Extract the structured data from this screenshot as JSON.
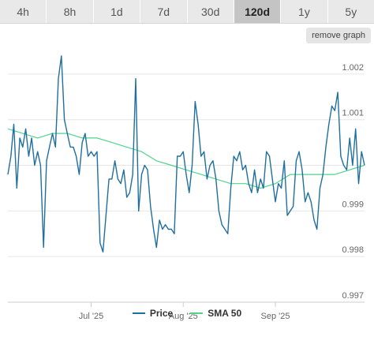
{
  "ranges": [
    {
      "label": "4h",
      "active": false
    },
    {
      "label": "8h",
      "active": false
    },
    {
      "label": "1d",
      "active": false
    },
    {
      "label": "7d",
      "active": false
    },
    {
      "label": "30d",
      "active": false
    },
    {
      "label": "120d",
      "active": true
    },
    {
      "label": "1y",
      "active": false
    },
    {
      "label": "5y",
      "active": false
    }
  ],
  "remove_graph_label": "remove graph",
  "legend": [
    {
      "label": "Price",
      "color": "#1f6f9f"
    },
    {
      "label": "SMA 50",
      "color": "#4fd48a"
    }
  ],
  "chart_data": {
    "type": "line",
    "x_tick_labels": [
      "Jul '25",
      "Aug '25",
      "Sep '25"
    ],
    "x_tick_dates": [
      "2025-07-01",
      "2025-08-01",
      "2025-09-01"
    ],
    "x_range": [
      "2025-06-03",
      "2025-10-01"
    ],
    "ylim": [
      0.997,
      1.0025
    ],
    "y_ticks": [
      0.997,
      0.998,
      0.999,
      1.001,
      1.002
    ],
    "y_tick_labels": [
      "0.997",
      "0.998",
      "0.999",
      "1.001",
      "1.002"
    ],
    "grid": "horizontal",
    "legend_position": "bottom-center",
    "series": [
      {
        "name": "Price",
        "color": "#1f6f9f",
        "x": [
          "2025-06-03",
          "2025-06-04",
          "2025-06-05",
          "2025-06-06",
          "2025-06-07",
          "2025-06-08",
          "2025-06-09",
          "2025-06-10",
          "2025-06-11",
          "2025-06-12",
          "2025-06-13",
          "2025-06-14",
          "2025-06-15",
          "2025-06-16",
          "2025-06-17",
          "2025-06-18",
          "2025-06-19",
          "2025-06-20",
          "2025-06-21",
          "2025-06-22",
          "2025-06-23",
          "2025-06-24",
          "2025-06-25",
          "2025-06-26",
          "2025-06-27",
          "2025-06-28",
          "2025-06-29",
          "2025-06-30",
          "2025-07-01",
          "2025-07-02",
          "2025-07-03",
          "2025-07-04",
          "2025-07-05",
          "2025-07-06",
          "2025-07-07",
          "2025-07-08",
          "2025-07-09",
          "2025-07-10",
          "2025-07-11",
          "2025-07-12",
          "2025-07-13",
          "2025-07-14",
          "2025-07-15",
          "2025-07-16",
          "2025-07-17",
          "2025-07-18",
          "2025-07-19",
          "2025-07-20",
          "2025-07-21",
          "2025-07-22",
          "2025-07-23",
          "2025-07-24",
          "2025-07-25",
          "2025-07-26",
          "2025-07-27",
          "2025-07-28",
          "2025-07-29",
          "2025-07-30",
          "2025-07-31",
          "2025-08-01",
          "2025-08-02",
          "2025-08-03",
          "2025-08-04",
          "2025-08-05",
          "2025-08-06",
          "2025-08-07",
          "2025-08-08",
          "2025-08-09",
          "2025-08-10",
          "2025-08-11",
          "2025-08-12",
          "2025-08-13",
          "2025-08-14",
          "2025-08-15",
          "2025-08-16",
          "2025-08-17",
          "2025-08-18",
          "2025-08-19",
          "2025-08-20",
          "2025-08-21",
          "2025-08-22",
          "2025-08-23",
          "2025-08-24",
          "2025-08-25",
          "2025-08-26",
          "2025-08-27",
          "2025-08-28",
          "2025-08-29",
          "2025-08-30",
          "2025-08-31",
          "2025-09-01",
          "2025-09-02",
          "2025-09-03",
          "2025-09-04",
          "2025-09-05",
          "2025-09-06",
          "2025-09-07",
          "2025-09-08",
          "2025-09-09",
          "2025-09-10",
          "2025-09-11",
          "2025-09-12",
          "2025-09-13",
          "2025-09-14",
          "2025-09-15",
          "2025-09-16",
          "2025-09-17",
          "2025-09-18",
          "2025-09-19",
          "2025-09-20",
          "2025-09-21",
          "2025-09-22",
          "2025-09-23",
          "2025-09-24",
          "2025-09-25",
          "2025-09-26",
          "2025-09-27",
          "2025-09-28",
          "2025-09-29",
          "2025-09-30",
          "2025-10-01"
        ],
        "values": [
          0.9998,
          1.0002,
          1.0009,
          0.9995,
          1.0006,
          1.0004,
          1.0008,
          1.0002,
          1.0006,
          1.0,
          1.0003,
          1.0,
          0.9982,
          1.0001,
          1.0004,
          1.0007,
          1.0004,
          1.0019,
          1.0024,
          1.001,
          1.0007,
          1.0004,
          1.0004,
          1.0002,
          0.9998,
          1.0005,
          1.0007,
          1.0002,
          1.0003,
          1.0002,
          1.0003,
          0.9983,
          0.9981,
          0.9989,
          0.9997,
          0.9997,
          1.0001,
          0.9997,
          0.9996,
          0.9999,
          0.9993,
          0.9994,
          0.9998,
          1.0019,
          0.999,
          0.9998,
          1.0,
          0.9999,
          0.9991,
          0.9986,
          0.9982,
          0.9988,
          0.9986,
          0.9987,
          0.9986,
          0.9986,
          0.9985,
          1.0002,
          1.0002,
          1.0003,
          0.9998,
          0.9994,
          1.0,
          1.0014,
          1.0009,
          1.0002,
          1.0003,
          0.9997,
          1.0,
          1.0001,
          0.9997,
          0.999,
          0.9987,
          0.9986,
          0.9985,
          0.9995,
          1.0002,
          1.0001,
          1.0003,
          0.9999,
          1.0,
          0.9996,
          0.9994,
          0.9999,
          0.9994,
          0.9997,
          0.9995,
          1.0003,
          1.0002,
          0.9997,
          0.9992,
          0.9996,
          0.9995,
          1.0001,
          0.9989,
          0.999,
          0.9991,
          1.0001,
          1.0003,
          0.9999,
          0.9992,
          0.9994,
          0.9992,
          0.9988,
          0.9986,
          0.9995,
          0.9998,
          1.0004,
          1.0009,
          1.0013,
          1.0012,
          1.0016,
          1.0002,
          1.0,
          0.9999,
          1.0006,
          1.0,
          1.0008,
          0.9996,
          1.0003,
          1.0
        ]
      },
      {
        "name": "SMA 50",
        "color": "#4fd48a",
        "x": [
          "2025-06-03",
          "2025-06-08",
          "2025-06-13",
          "2025-06-18",
          "2025-06-23",
          "2025-06-28",
          "2025-07-03",
          "2025-07-08",
          "2025-07-13",
          "2025-07-18",
          "2025-07-23",
          "2025-07-28",
          "2025-08-02",
          "2025-08-07",
          "2025-08-12",
          "2025-08-17",
          "2025-08-22",
          "2025-08-27",
          "2025-09-01",
          "2025-09-06",
          "2025-09-11",
          "2025-09-16",
          "2025-09-21",
          "2025-09-26",
          "2025-10-01"
        ],
        "values": [
          1.0008,
          1.0007,
          1.0006,
          1.0007,
          1.0007,
          1.0006,
          1.0006,
          1.0005,
          1.0004,
          1.0003,
          1.0001,
          1.0,
          0.9999,
          0.9998,
          0.9997,
          0.9996,
          0.9996,
          0.9995,
          0.9996,
          0.9998,
          0.9998,
          0.9998,
          0.9998,
          0.9999,
          1.0
        ]
      }
    ]
  }
}
